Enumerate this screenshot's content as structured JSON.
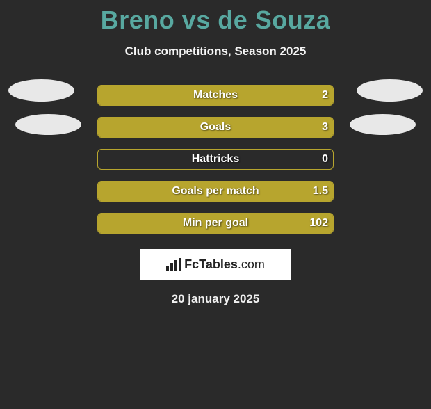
{
  "title_color": "#58a8a0",
  "title_text": "Breno vs de Souza",
  "subtitle_text": "Club competitions, Season 2025",
  "background_color": "#2a2a2a",
  "bar_border_color": "#b7a52e",
  "bar_fill_color": "#b7a52e",
  "bar_track_width": 340,
  "bar_track_height": 30,
  "rows": [
    {
      "label": "Matches",
      "left_val": "",
      "right_val": "2",
      "left_pct": 0,
      "right_pct": 100
    },
    {
      "label": "Goals",
      "left_val": "",
      "right_val": "3",
      "left_pct": 0,
      "right_pct": 100
    },
    {
      "label": "Hattricks",
      "left_val": "",
      "right_val": "0",
      "left_pct": 0,
      "right_pct": 0
    },
    {
      "label": "Goals per match",
      "left_val": "",
      "right_val": "1.5",
      "left_pct": 0,
      "right_pct": 100
    },
    {
      "label": "Min per goal",
      "left_val": "",
      "right_val": "102",
      "left_pct": 0,
      "right_pct": 100
    }
  ],
  "ellipse_color": "#e8e8e8",
  "logo_text_left": "Fc",
  "logo_text_right": "Tables",
  "logo_text_suffix": ".com",
  "date_text": "20 january 2025"
}
